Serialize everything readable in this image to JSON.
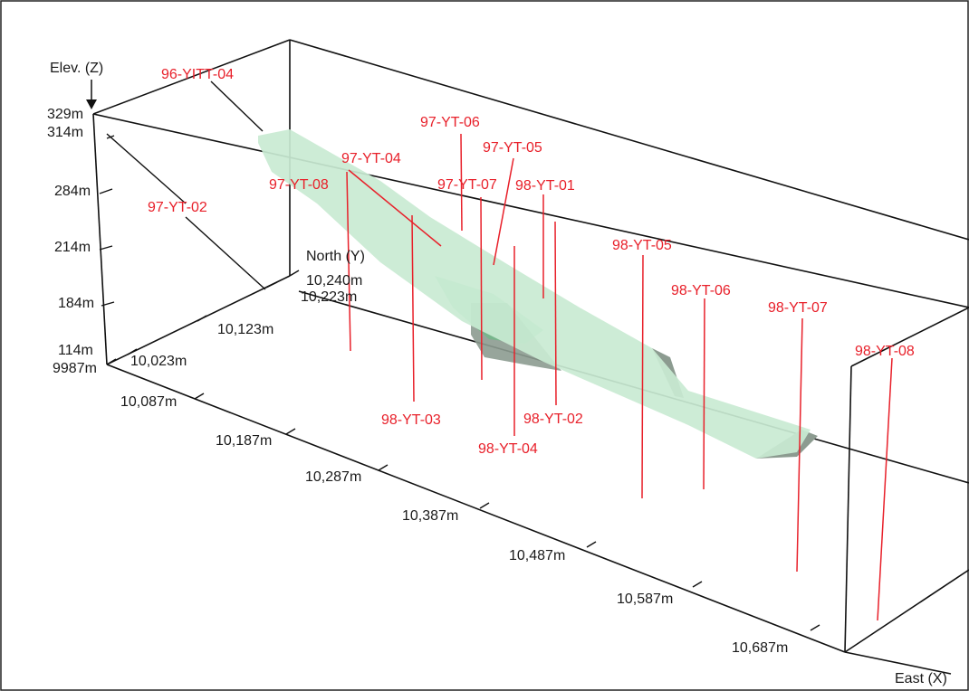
{
  "axes": {
    "elevation": {
      "title": "Elev. (Z)",
      "ticks": [
        "329m",
        "314m",
        "284m",
        "214m",
        "184m",
        "114m"
      ]
    },
    "north": {
      "title": "North (Y)",
      "ticks": [
        "9987m",
        "10,023m",
        "10,123m",
        "10,223m",
        "10,240m"
      ]
    },
    "east": {
      "title": "East (X)",
      "ticks": [
        "10,087m",
        "10,187m",
        "10,287m",
        "10,387m",
        "10,487m",
        "10,587m",
        "10,687m"
      ]
    }
  },
  "drillholes": [
    "96-YITT-04",
    "97-YT-02",
    "97-YT-08",
    "97-YT-04",
    "97-YT-06",
    "97-YT-05",
    "97-YT-07",
    "98-YT-01",
    "98-YT-05",
    "98-YT-06",
    "98-YT-07",
    "98-YT-08",
    "98-YT-03",
    "98-YT-04",
    "98-YT-02"
  ],
  "colors": {
    "axis": "#111111",
    "drillhole": "#e8202a",
    "orebody_light": "#c9ead3",
    "orebody_mid": "#9fd8b0",
    "orebody_dark": "#8c9b90"
  }
}
